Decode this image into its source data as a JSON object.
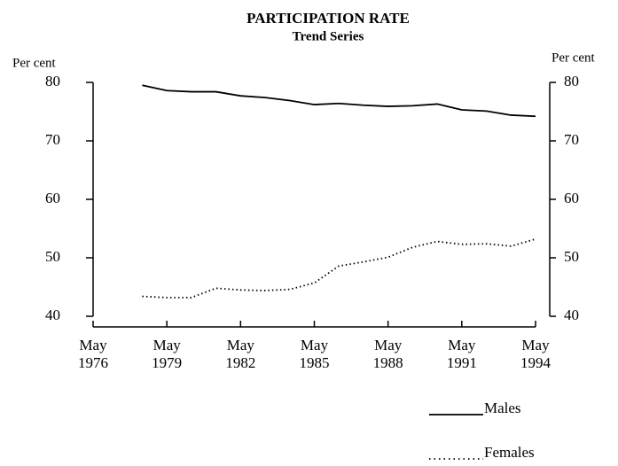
{
  "chart_data": {
    "type": "line",
    "title": "PARTICIPATION RATE",
    "subtitle": "Trend Series",
    "ylabel": "Per cent",
    "y2label": "Per cent",
    "x": [
      1978,
      1979,
      1980,
      1981,
      1982,
      1983,
      1984,
      1985,
      1986,
      1987,
      1988,
      1989,
      1990,
      1991,
      1992,
      1993,
      1994
    ],
    "series": [
      {
        "name": "Males",
        "color": "#000000",
        "dash": "solid",
        "values": [
          79.5,
          78.6,
          78.4,
          78.4,
          77.7,
          77.4,
          76.9,
          76.2,
          76.4,
          76.1,
          75.9,
          76.0,
          76.3,
          75.3,
          75.1,
          74.4,
          74.2
        ]
      },
      {
        "name": "Females",
        "color": "#000000",
        "dash": "dotted",
        "values": [
          43.4,
          43.2,
          43.2,
          44.8,
          44.5,
          44.4,
          44.6,
          45.7,
          48.6,
          49.3,
          50.1,
          51.8,
          52.8,
          52.3,
          52.4,
          52.0,
          53.2
        ]
      }
    ],
    "xlim": [
      1976,
      1994
    ],
    "xticks": [
      {
        "value": 1976,
        "label": "May 1976"
      },
      {
        "value": 1979,
        "label": "May 1979"
      },
      {
        "value": 1982,
        "label": "May 1982"
      },
      {
        "value": 1985,
        "label": "May 1985"
      },
      {
        "value": 1988,
        "label": "May 1988"
      },
      {
        "value": 1991,
        "label": "May 1991"
      },
      {
        "value": 1994,
        "label": "May 1994"
      }
    ],
    "ylim": [
      40,
      80
    ],
    "yticks": [
      40,
      50,
      60,
      70,
      80
    ],
    "y2lim": [
      40,
      80
    ],
    "y2ticks": [
      40,
      50,
      60,
      70,
      80
    ],
    "grid": false,
    "legend": "bottom-right"
  }
}
